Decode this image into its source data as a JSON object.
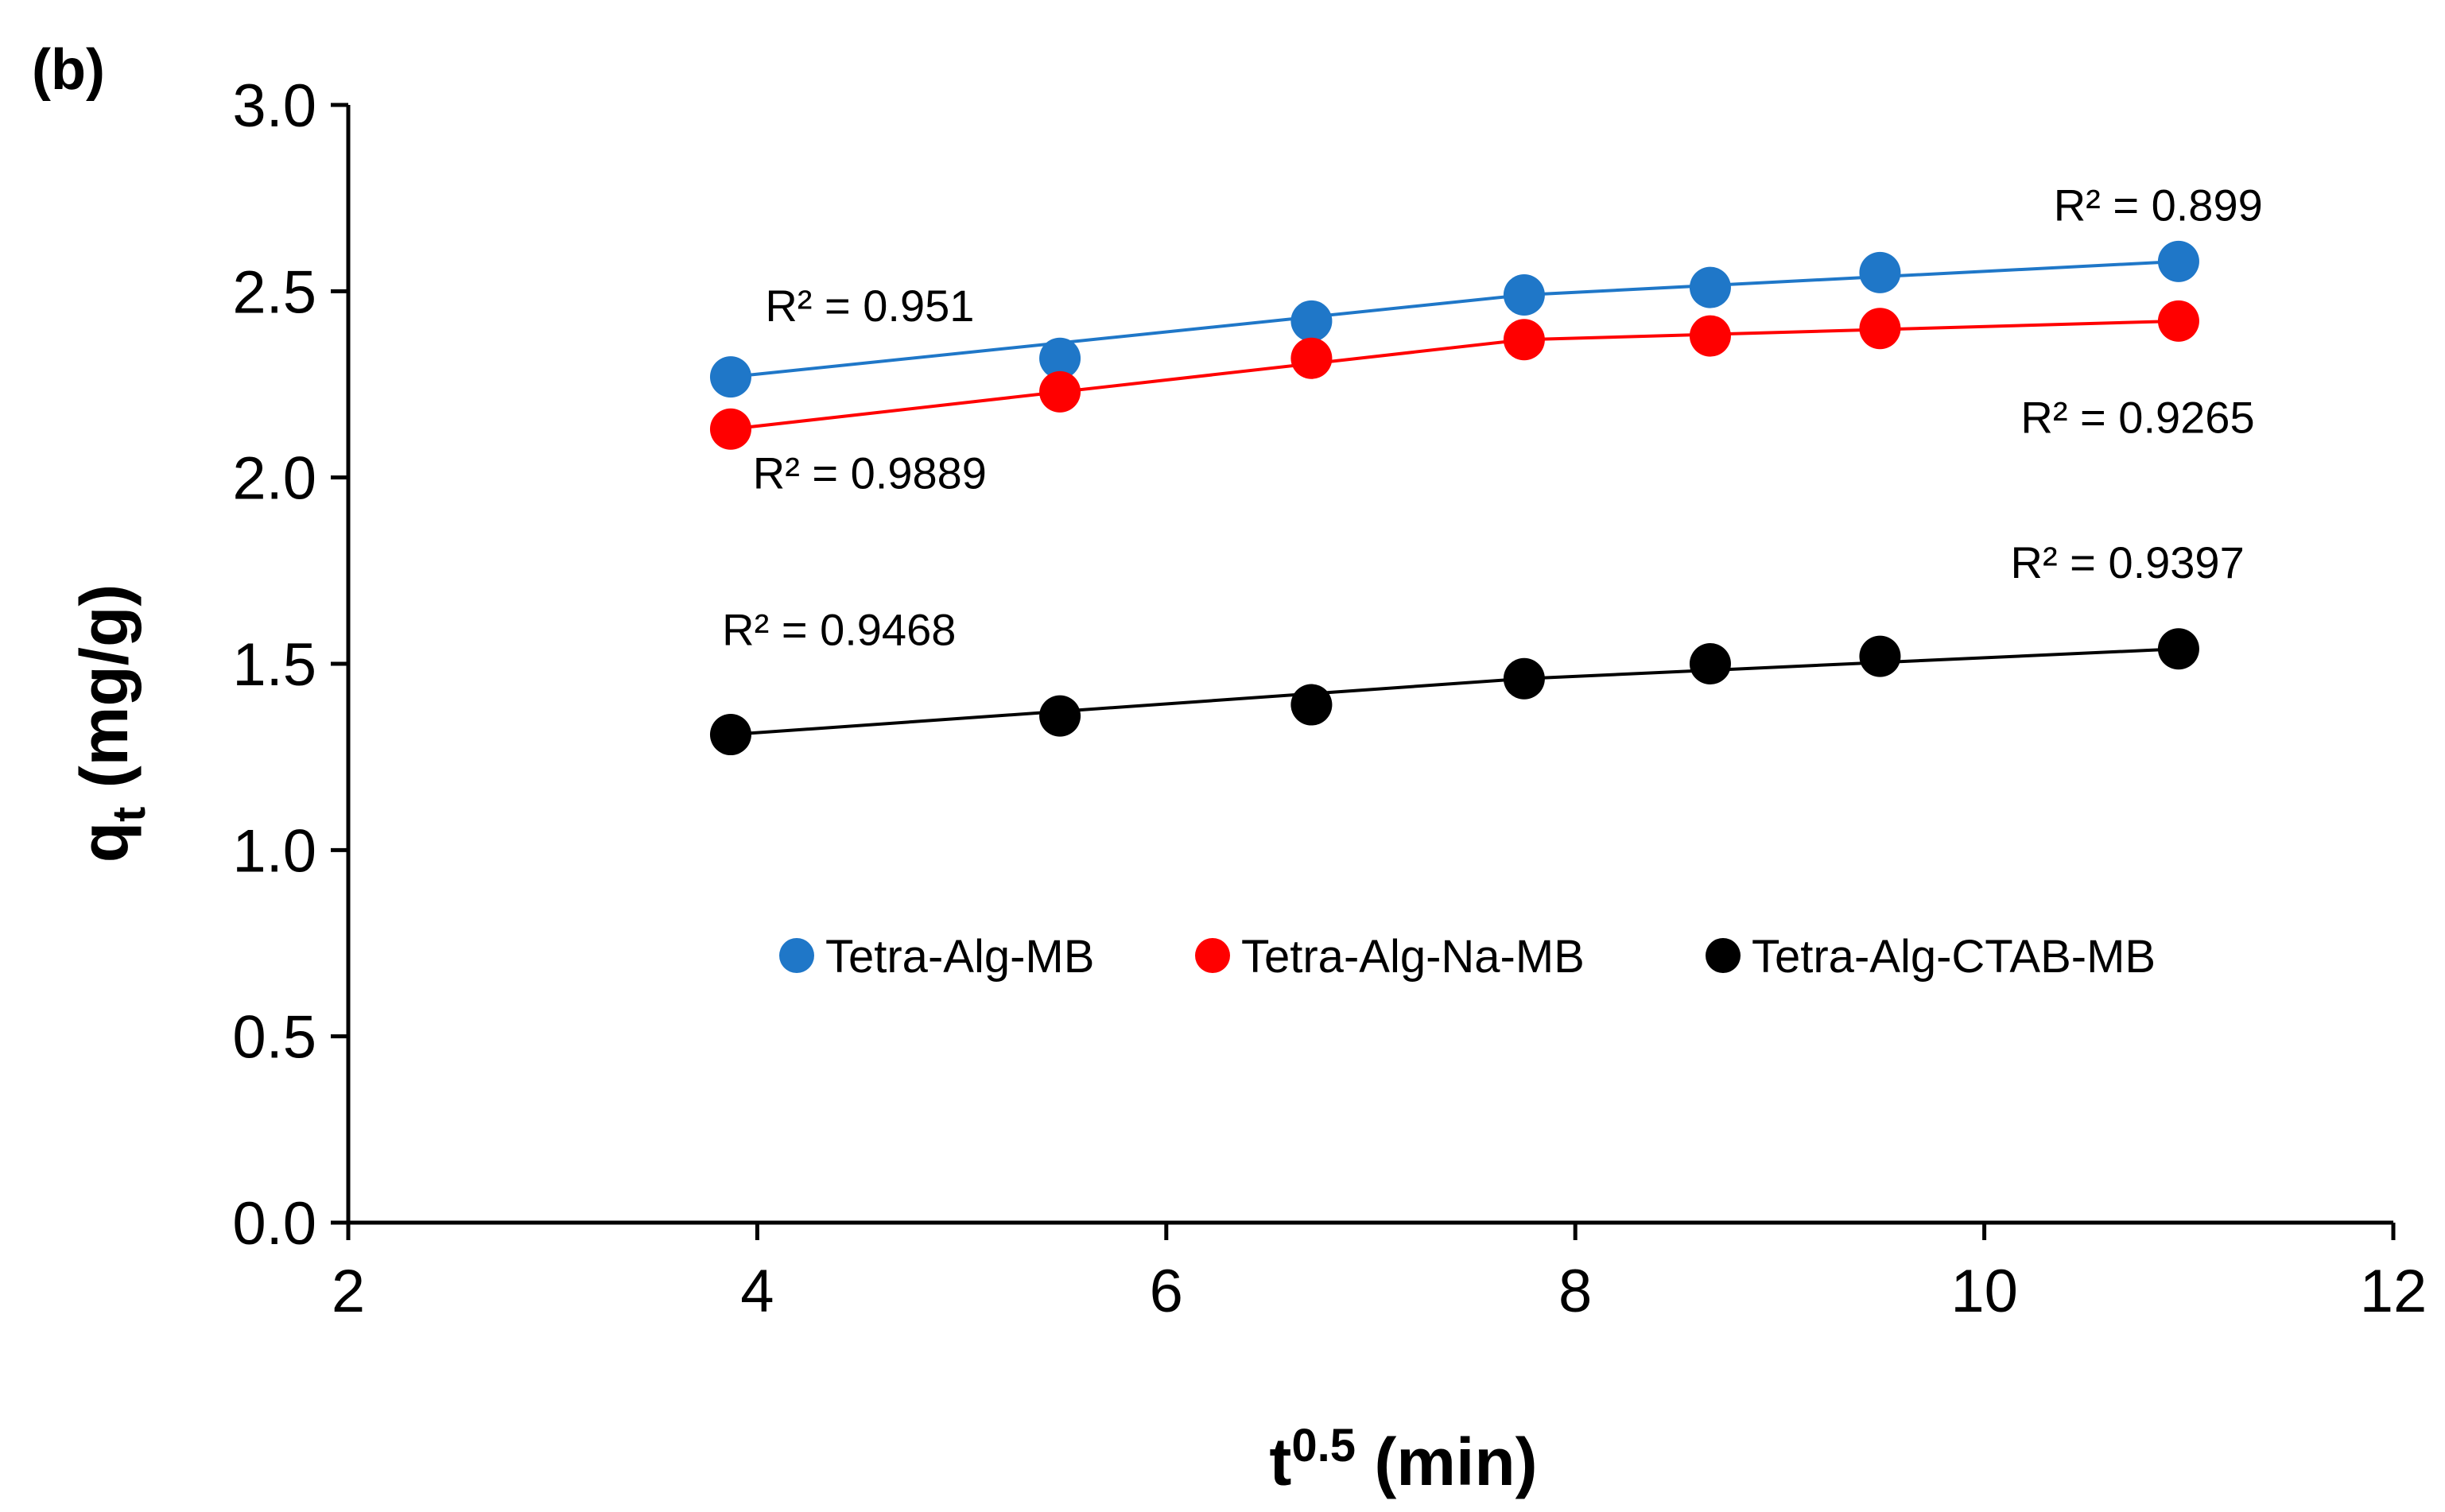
{
  "panel_label": "(b)",
  "chart_data": {
    "type": "line",
    "title": "",
    "xlabel": {
      "main": "t",
      "sup": "0.5",
      "rest": " (min)"
    },
    "ylabel": {
      "main": "q",
      "sub": "t",
      "rest": " (mg/g)"
    },
    "xlim": [
      2,
      12
    ],
    "ylim": [
      0,
      3
    ],
    "x_ticks": [
      2,
      4,
      6,
      8,
      10,
      12
    ],
    "y_ticks": [
      "0.0",
      "0.5",
      "1.0",
      "1.5",
      "2.0",
      "2.5",
      "3.0"
    ],
    "grid": false,
    "legend_position": "center",
    "series": [
      {
        "name": "Tetra-Alg-MB",
        "color": "#1f77c8",
        "x": [
          3.87,
          5.48,
          6.71,
          7.75,
          8.66,
          9.49,
          10.95
        ],
        "y": [
          2.27,
          2.32,
          2.42,
          2.49,
          2.51,
          2.55,
          2.58
        ],
        "fit_segments": [
          [
            0,
            3
          ],
          [
            3,
            6
          ]
        ],
        "r2_labels": [
          {
            "text": "R² = 0.951",
            "x": 4.55,
            "y": 2.42
          },
          {
            "text": "R² = 0.899",
            "x": 10.85,
            "y": 2.69
          }
        ]
      },
      {
        "name": "Tetra-Alg-Na-MB",
        "color": "#ff0000",
        "x": [
          3.87,
          5.48,
          6.71,
          7.75,
          8.66,
          9.49,
          10.95
        ],
        "y": [
          2.13,
          2.23,
          2.32,
          2.37,
          2.38,
          2.4,
          2.42
        ],
        "fit_segments": [
          [
            0,
            3
          ],
          [
            3,
            6
          ]
        ],
        "r2_labels": [
          {
            "text": "R² = 0.9889",
            "x": 4.55,
            "y": 1.97
          },
          {
            "text": "R² = 0.9265",
            "x": 10.75,
            "y": 2.12
          }
        ]
      },
      {
        "name": "Tetra-Alg-CTAB-MB",
        "color": "#000000",
        "x": [
          3.87,
          5.48,
          6.71,
          7.75,
          8.66,
          9.49,
          10.95
        ],
        "y": [
          1.31,
          1.36,
          1.39,
          1.46,
          1.5,
          1.52,
          1.54
        ],
        "fit_segments": [
          [
            0,
            3
          ],
          [
            3,
            6
          ]
        ],
        "r2_labels": [
          {
            "text": "R² = 0.9468",
            "x": 4.4,
            "y": 1.55
          },
          {
            "text": "R² = 0.9397",
            "x": 10.7,
            "y": 1.73
          }
        ]
      }
    ]
  }
}
